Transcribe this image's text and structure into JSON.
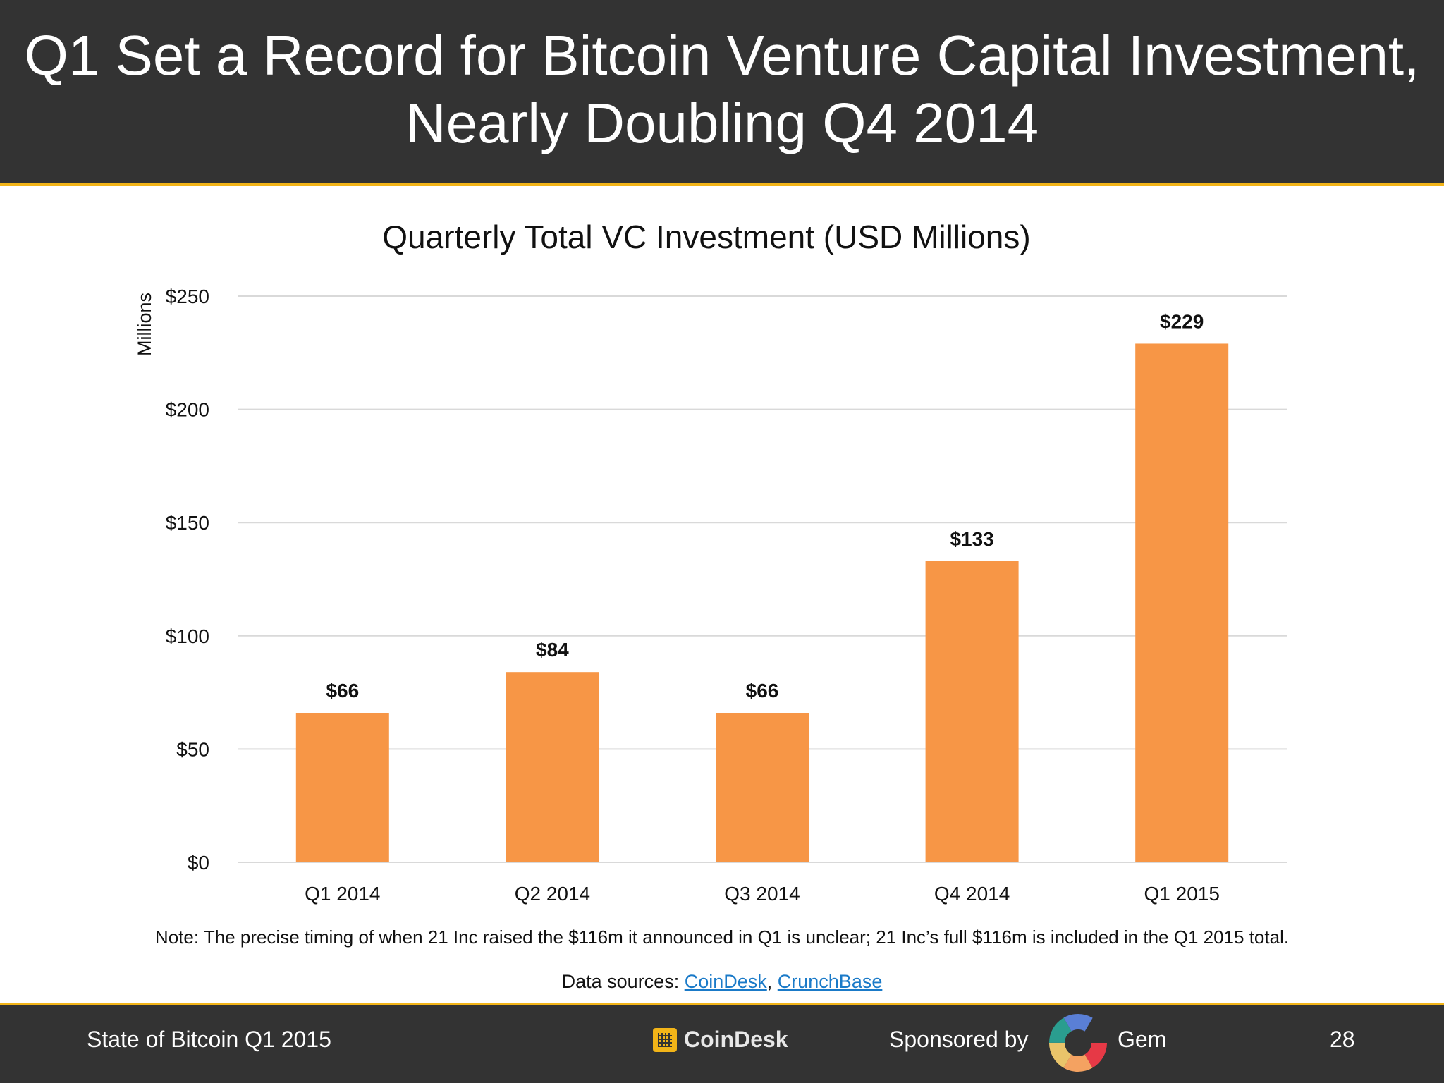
{
  "slide": {
    "title_line1": "Q1 Set a Record for Bitcoin Venture Capital Investment,",
    "title_line2": "Nearly Doubling Q4 2014"
  },
  "chart_data": {
    "type": "bar",
    "title": "Quarterly Total VC Investment (USD Millions)",
    "xlabel": "",
    "ylabel": "Millions",
    "categories": [
      "Q1 2014",
      "Q2 2014",
      "Q3 2014",
      "Q4 2014",
      "Q1 2015"
    ],
    "values": [
      66,
      84,
      66,
      133,
      229
    ],
    "data_labels": [
      "$66",
      "$84",
      "$66",
      "$133",
      "$229"
    ],
    "ylim": [
      0,
      250
    ],
    "yticks": [
      0,
      50,
      100,
      150,
      200,
      250
    ],
    "ytick_labels": [
      "$0",
      "$50",
      "$100",
      "$150",
      "$200",
      "$250"
    ],
    "grid": true,
    "legend": "none",
    "bar_color": "#f79646"
  },
  "note": "Note: The precise timing of when 21 Inc raised the $116m it announced in Q1 is unclear; 21 Inc’s full $116m is included in the Q1 2015 total.",
  "sources": {
    "label": "Data sources: ",
    "link1": "CoinDesk",
    "separator": ", ",
    "link2": "CrunchBase"
  },
  "footer": {
    "left_text": "State of Bitcoin Q1 2015",
    "logo_text": "CoinDesk",
    "sponsored_by": "Sponsored by",
    "sponsor_name": "Gem",
    "page_number": "28"
  },
  "colors": {
    "header_bg": "#333333",
    "accent": "#f2b418",
    "link": "#1a7ac8"
  }
}
